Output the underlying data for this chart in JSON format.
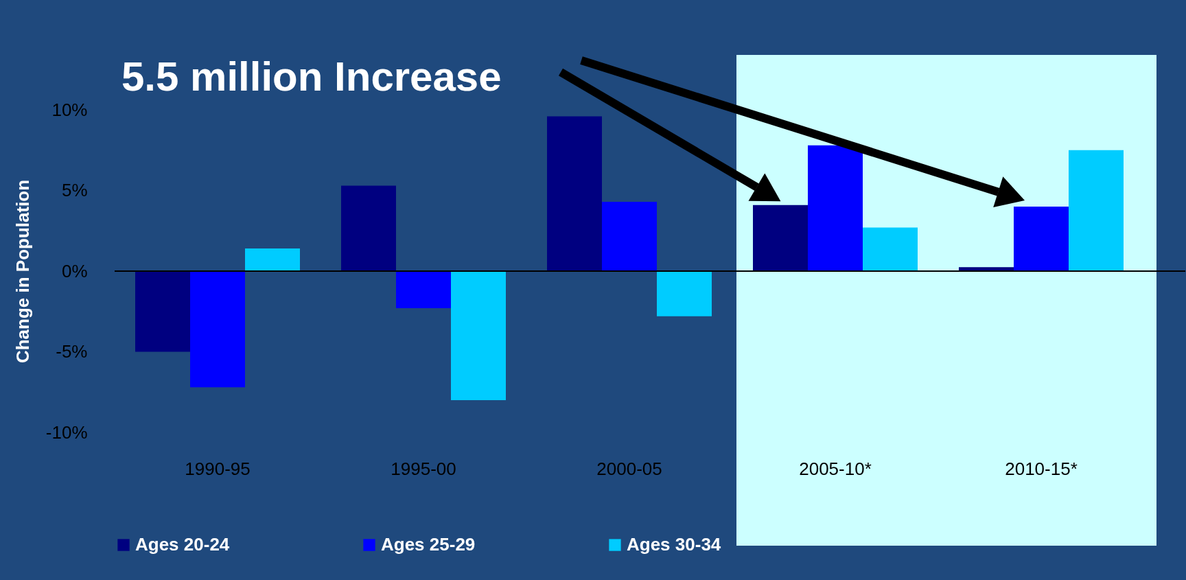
{
  "chart_data": {
    "type": "bar",
    "ylabel": "Change in Population",
    "annotations": [
      "5.5 million Increase"
    ],
    "categories": [
      "1990-95",
      "1995-00",
      "2000-05",
      "2005-10*",
      "2010-15*"
    ],
    "series": [
      {
        "name": "Ages 20-24",
        "color": "#000080",
        "values": [
          -5.0,
          5.3,
          9.6,
          4.1,
          0.25
        ]
      },
      {
        "name": "Ages 25-29",
        "color": "#0000ff",
        "values": [
          -7.2,
          -2.3,
          4.3,
          7.8,
          4.0
        ]
      },
      {
        "name": "Ages 30-34",
        "color": "#00ccff",
        "values": [
          1.4,
          -8.0,
          -2.8,
          2.7,
          7.5
        ]
      }
    ],
    "ylim": [
      -10,
      10
    ],
    "yticks": [
      {
        "value": -10,
        "label": "-10%"
      },
      {
        "value": -5,
        "label": "-5%"
      },
      {
        "value": 0,
        "label": "0%"
      },
      {
        "value": 5,
        "label": "5%"
      },
      {
        "value": 10,
        "label": "10%"
      }
    ],
    "bands": [
      {
        "axis": "x",
        "from": "2005-10*",
        "to": "2010-15*",
        "color": "#ccffff"
      }
    ],
    "ref_lines": [
      {
        "axis": "y",
        "value": 0,
        "color": "#000000"
      }
    ],
    "grid": false,
    "legend": "bottom"
  }
}
